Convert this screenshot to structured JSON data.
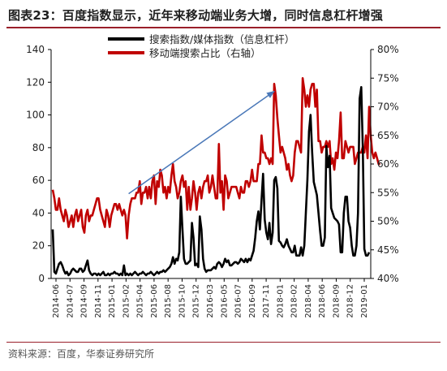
{
  "title": "图表23：百度指数显示，近年来移动端业务大增，同时信息杠杆增强",
  "source": "资料来源：百度，华泰证券研究所",
  "colors": {
    "search": "#000000",
    "mobile": "#c00000",
    "arrow": "#4a78b8",
    "rule": "#9a1f2a"
  },
  "chart_data": {
    "type": "line",
    "legend": {
      "placement": "top-center"
    },
    "x_tick_labels": [
      "2014-06",
      "2014-07",
      "2014-09",
      "2014-11",
      "2015-01",
      "2015-02",
      "2015-04",
      "2015-06",
      "2015-08",
      "2015-10",
      "2015-12",
      "2016-03",
      "2016-05",
      "2016-07",
      "2016-09",
      "2017-11",
      "2018-01",
      "2018-02",
      "2018-04",
      "2018-06",
      "2018-09",
      "2018-12",
      "2019-01"
    ],
    "y_left": {
      "ylim": [
        0,
        140
      ],
      "ticks": [
        "0",
        "20",
        "40",
        "60",
        "80",
        "100",
        "120",
        "140"
      ]
    },
    "y_right": {
      "ylim": [
        40,
        80
      ],
      "ticks": [
        "40%",
        "45%",
        "50%",
        "55%",
        "60%",
        "65%",
        "70%",
        "75%",
        "80%"
      ]
    },
    "series": [
      {
        "name": "搜索指数/媒体指数（信息杠杆）",
        "axis": "left",
        "color": "#000000",
        "values": [
          30,
          4,
          3,
          6,
          9,
          10,
          8,
          5,
          3,
          4,
          2,
          3,
          5,
          6,
          5,
          4,
          4,
          6,
          6,
          4,
          5,
          8,
          11,
          5,
          3,
          2,
          3,
          3,
          2,
          3,
          2,
          3,
          4,
          2,
          2,
          3,
          2,
          3,
          3,
          4,
          3,
          3,
          2,
          3,
          2,
          8,
          2,
          3,
          2,
          3,
          2,
          3,
          4,
          3,
          2,
          3,
          3,
          4,
          3,
          2,
          3,
          3,
          4,
          3,
          2,
          3,
          4,
          3,
          4,
          4,
          5,
          4,
          5,
          6,
          7,
          9,
          13,
          9,
          12,
          11,
          16,
          50,
          30,
          12,
          9,
          9,
          10,
          11,
          34,
          25,
          8,
          9,
          7,
          38,
          30,
          12,
          6,
          4,
          5,
          5,
          5,
          6,
          7,
          6,
          9,
          10,
          9,
          7,
          9,
          12,
          10,
          11,
          8,
          8,
          9,
          10,
          10,
          9,
          10,
          12,
          11,
          10,
          12,
          10,
          12,
          11,
          14,
          17,
          25,
          35,
          41,
          30,
          48,
          64,
          36,
          28,
          24,
          34,
          21,
          28,
          60,
          62,
          55,
          23,
          22,
          20,
          19,
          21,
          24,
          20,
          18,
          16,
          16,
          20,
          14,
          14,
          14,
          19,
          14,
          20,
          40,
          60,
          90,
          100,
          77,
          59,
          55,
          51,
          40,
          29,
          20,
          20,
          25,
          81,
          68,
          75,
          43,
          40,
          37,
          36,
          35,
          33,
          16,
          16,
          40,
          50,
          50,
          35,
          31,
          20,
          14,
          14,
          20,
          40,
          110,
          117,
          80,
          18,
          14,
          14,
          16
        ]
      },
      {
        "name": "移动端搜索占比（右轴）",
        "axis": "right",
        "color": "#c00000",
        "values": [
          55.5,
          54,
          52,
          52,
          54,
          52,
          51,
          50,
          52,
          51,
          49,
          50,
          51,
          49,
          51,
          52,
          50,
          51,
          52,
          49,
          48,
          51,
          52,
          50,
          51,
          51,
          52,
          53,
          54,
          54,
          52,
          51,
          50,
          49,
          52,
          51,
          49,
          51,
          52,
          53,
          53,
          52,
          53,
          52,
          51,
          52,
          51,
          47,
          51,
          53,
          54,
          54,
          54,
          55,
          55,
          57,
          53,
          55,
          55,
          56,
          54,
          56,
          54,
          57,
          58,
          53,
          57,
          56,
          59,
          58,
          55,
          56,
          54,
          56,
          55,
          58,
          60,
          57,
          56,
          54,
          55,
          57,
          58,
          56,
          57,
          52,
          56,
          52,
          54,
          57,
          55,
          52,
          55,
          56,
          54,
          56,
          57,
          57,
          58,
          55,
          56,
          58,
          56,
          54,
          54,
          63.5,
          55,
          57,
          52,
          58,
          57,
          54,
          55,
          56,
          56,
          56,
          56,
          55,
          54,
          56,
          55,
          55,
          57,
          57,
          56,
          57,
          59,
          57,
          57,
          57,
          60,
          60,
          65,
          62,
          62,
          61,
          61,
          60,
          61,
          60,
          74,
          72,
          68,
          65,
          62,
          63,
          62,
          61,
          59,
          60,
          58,
          57,
          58,
          62,
          64,
          64,
          63,
          62,
          75,
          73,
          70,
          72,
          70,
          73,
          74,
          74,
          70,
          73,
          64,
          64,
          62,
          63,
          63,
          64,
          63,
          64,
          60,
          61,
          59,
          62,
          61,
          64,
          69,
          61,
          61,
          64,
          63,
          62,
          63,
          63,
          63,
          60,
          61,
          62,
          62,
          62,
          63,
          62,
          65,
          61,
          70,
          65,
          62,
          61,
          62,
          61,
          60,
          60
        ]
      }
    ],
    "annotations": [
      {
        "type": "arrow",
        "from": {
          "index": 48,
          "right_value": 54.8
        },
        "to": {
          "index": 140,
          "right_value": 72.7
        }
      }
    ]
  }
}
